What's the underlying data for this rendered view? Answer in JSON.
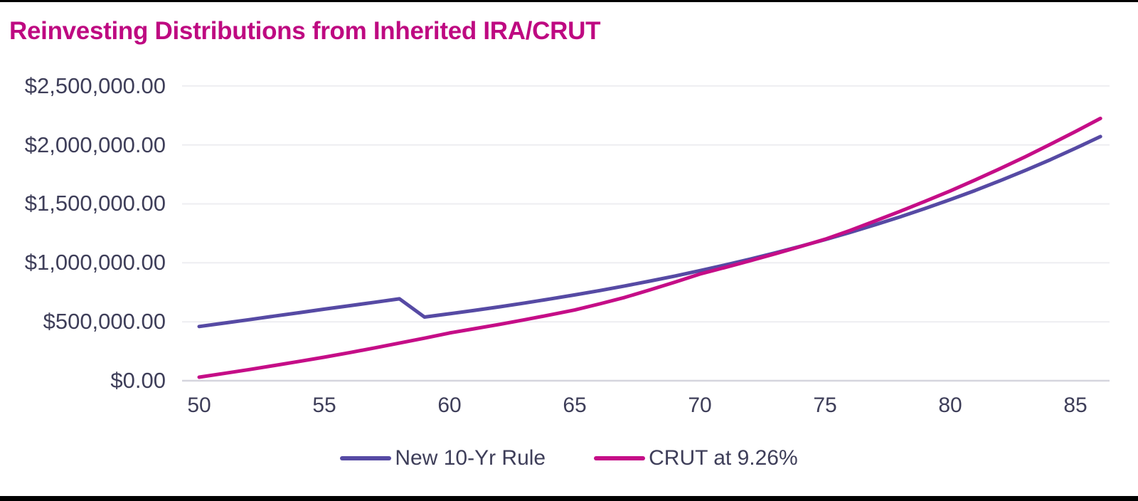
{
  "page": {
    "title": "Reinvesting Distributions from Inherited IRA/CRUT"
  },
  "colors": {
    "title": "#BE0981",
    "axis_text": "#3E3E59",
    "gridline": "#EDEDF1",
    "axis_line": "#D5D5DE",
    "frame_bar": "#000000",
    "series_new_10yr": "#564AA4",
    "series_crut": "#C50D87"
  },
  "chart_data": {
    "type": "line",
    "title": "Reinvesting Distributions from Inherited IRA/CRUT",
    "xlabel": "",
    "ylabel": "",
    "grid": "horizontal",
    "legend_position": "bottom",
    "xlim": [
      50,
      86
    ],
    "ylim": [
      0,
      2500000
    ],
    "x_ticks": [
      50,
      55,
      60,
      65,
      70,
      75,
      80,
      85
    ],
    "y_ticks": [
      {
        "value": 2500000,
        "label": "$2,500,000.00"
      },
      {
        "value": 2000000,
        "label": "$2,000,000.00"
      },
      {
        "value": 1500000,
        "label": "$1,500,000.00"
      },
      {
        "value": 1000000,
        "label": "$1,000,000.00"
      },
      {
        "value": 500000,
        "label": "$500,000.00"
      },
      {
        "value": 0,
        "label": "$0.00"
      }
    ],
    "x": [
      50,
      51,
      52,
      53,
      54,
      55,
      56,
      57,
      58,
      59,
      60,
      61,
      62,
      63,
      64,
      65,
      66,
      67,
      68,
      69,
      70,
      71,
      72,
      73,
      74,
      75,
      76,
      77,
      78,
      79,
      80,
      81,
      82,
      83,
      84,
      85,
      86
    ],
    "series": [
      {
        "name": "New 10-Yr Rule",
        "color": "#564AA4",
        "values": [
          460000,
          489000,
          518000,
          548000,
          577000,
          607000,
          636000,
          665000,
          695000,
          540000,
          568000,
          597000,
          627000,
          659000,
          693000,
          728000,
          765000,
          804000,
          845000,
          888000,
          934000,
          981000,
          1031000,
          1084000,
          1139000,
          1197000,
          1258000,
          1323000,
          1390000,
          1461000,
          1536000,
          1614000,
          1697000,
          1784000,
          1875000,
          1971000,
          2071000
        ]
      },
      {
        "name": "CRUT at 9.26%",
        "color": "#C50D87",
        "values": [
          30000,
          62000,
          95000,
          129000,
          164000,
          200000,
          238000,
          278000,
          319000,
          361000,
          405000,
          441000,
          478000,
          517000,
          558000,
          600000,
          652000,
          707000,
          770000,
          836000,
          905000,
          960000,
          1017000,
          1076000,
          1137000,
          1200000,
          1275000,
          1355000,
          1437000,
          1522000,
          1610000,
          1703000,
          1800000,
          1900000,
          2005000,
          2113000,
          2225000
        ]
      }
    ]
  }
}
